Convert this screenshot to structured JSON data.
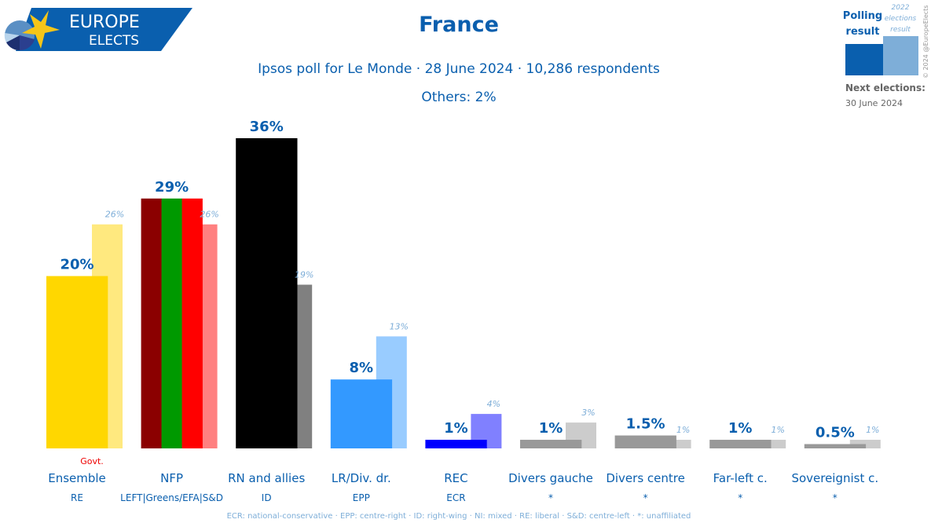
{
  "logo": {
    "line1": "EUROPE",
    "line2": "ELECTS"
  },
  "chart_data": {
    "type": "bar",
    "title": "France",
    "subtitle": "Ipsos poll for Le Monde · 28 June 2024 · 10,286 respondents",
    "others": "Others: 2%",
    "ylim": [
      0,
      36
    ],
    "grid": false,
    "legend": {
      "position": "top-right",
      "poll_label": [
        "Polling",
        "result"
      ],
      "prev_label": [
        "2022",
        "elections",
        "result"
      ],
      "poll_color": "#0a5fae",
      "prev_color": "#7eaed8"
    },
    "next_elections": {
      "label": "Next elections:",
      "date": "30 June 2024"
    },
    "copyright": "© 2024 @EuropeElects",
    "govt_label": "Govt.",
    "parties": [
      {
        "name": "Ensemble",
        "group": "RE",
        "poll": 20,
        "poll_label": "20%",
        "prev": 26,
        "prev_label": "26%",
        "colors": [
          "#FFD700"
        ],
        "prev_color": "#FFE97F",
        "govt": true
      },
      {
        "name": "NFP",
        "group": "LEFT|Greens/EFA|S&D",
        "poll": 29,
        "poll_label": "29%",
        "prev": 26,
        "prev_label": "26%",
        "colors": [
          "#8B0000",
          "#009900",
          "#FF0000"
        ],
        "prev_color": "#FF8080"
      },
      {
        "name": "RN and allies",
        "group": "ID",
        "poll": 36,
        "poll_label": "36%",
        "prev": 19,
        "prev_label": "19%",
        "colors": [
          "#000000"
        ],
        "prev_color": "#808080"
      },
      {
        "name": "LR/Div. dr.",
        "group": "EPP",
        "poll": 8,
        "poll_label": "8%",
        "prev": 13,
        "prev_label": "13%",
        "colors": [
          "#3399FF"
        ],
        "prev_color": "#99CCFF"
      },
      {
        "name": "REC",
        "group": "ECR",
        "poll": 1,
        "poll_label": "1%",
        "prev": 4,
        "prev_label": "4%",
        "colors": [
          "#0000FF"
        ],
        "prev_color": "#8080FF"
      },
      {
        "name": "Divers gauche",
        "group": "*",
        "poll": 1,
        "poll_label": "1%",
        "prev": 3,
        "prev_label": "3%",
        "colors": [
          "#999999"
        ],
        "prev_color": "#CCCCCC"
      },
      {
        "name": "Divers centre",
        "group": "*",
        "poll": 1.5,
        "poll_label": "1.5%",
        "prev": 1,
        "prev_label": "1%",
        "colors": [
          "#999999"
        ],
        "prev_color": "#CCCCCC"
      },
      {
        "name": "Far-left c.",
        "group": "*",
        "poll": 1,
        "poll_label": "1%",
        "prev": 1,
        "prev_label": "1%",
        "colors": [
          "#999999"
        ],
        "prev_color": "#CCCCCC"
      },
      {
        "name": "Sovereignist c.",
        "group": "*",
        "poll": 0.5,
        "poll_label": "0.5%",
        "prev": 1,
        "prev_label": "1%",
        "colors": [
          "#999999"
        ],
        "prev_color": "#CCCCCC"
      }
    ],
    "footnote": "ECR: national-conservative · EPP: centre-right · ID: right-wing · NI: mixed · RE: liberal · S&D: centre-left · *: unaffiliated"
  }
}
